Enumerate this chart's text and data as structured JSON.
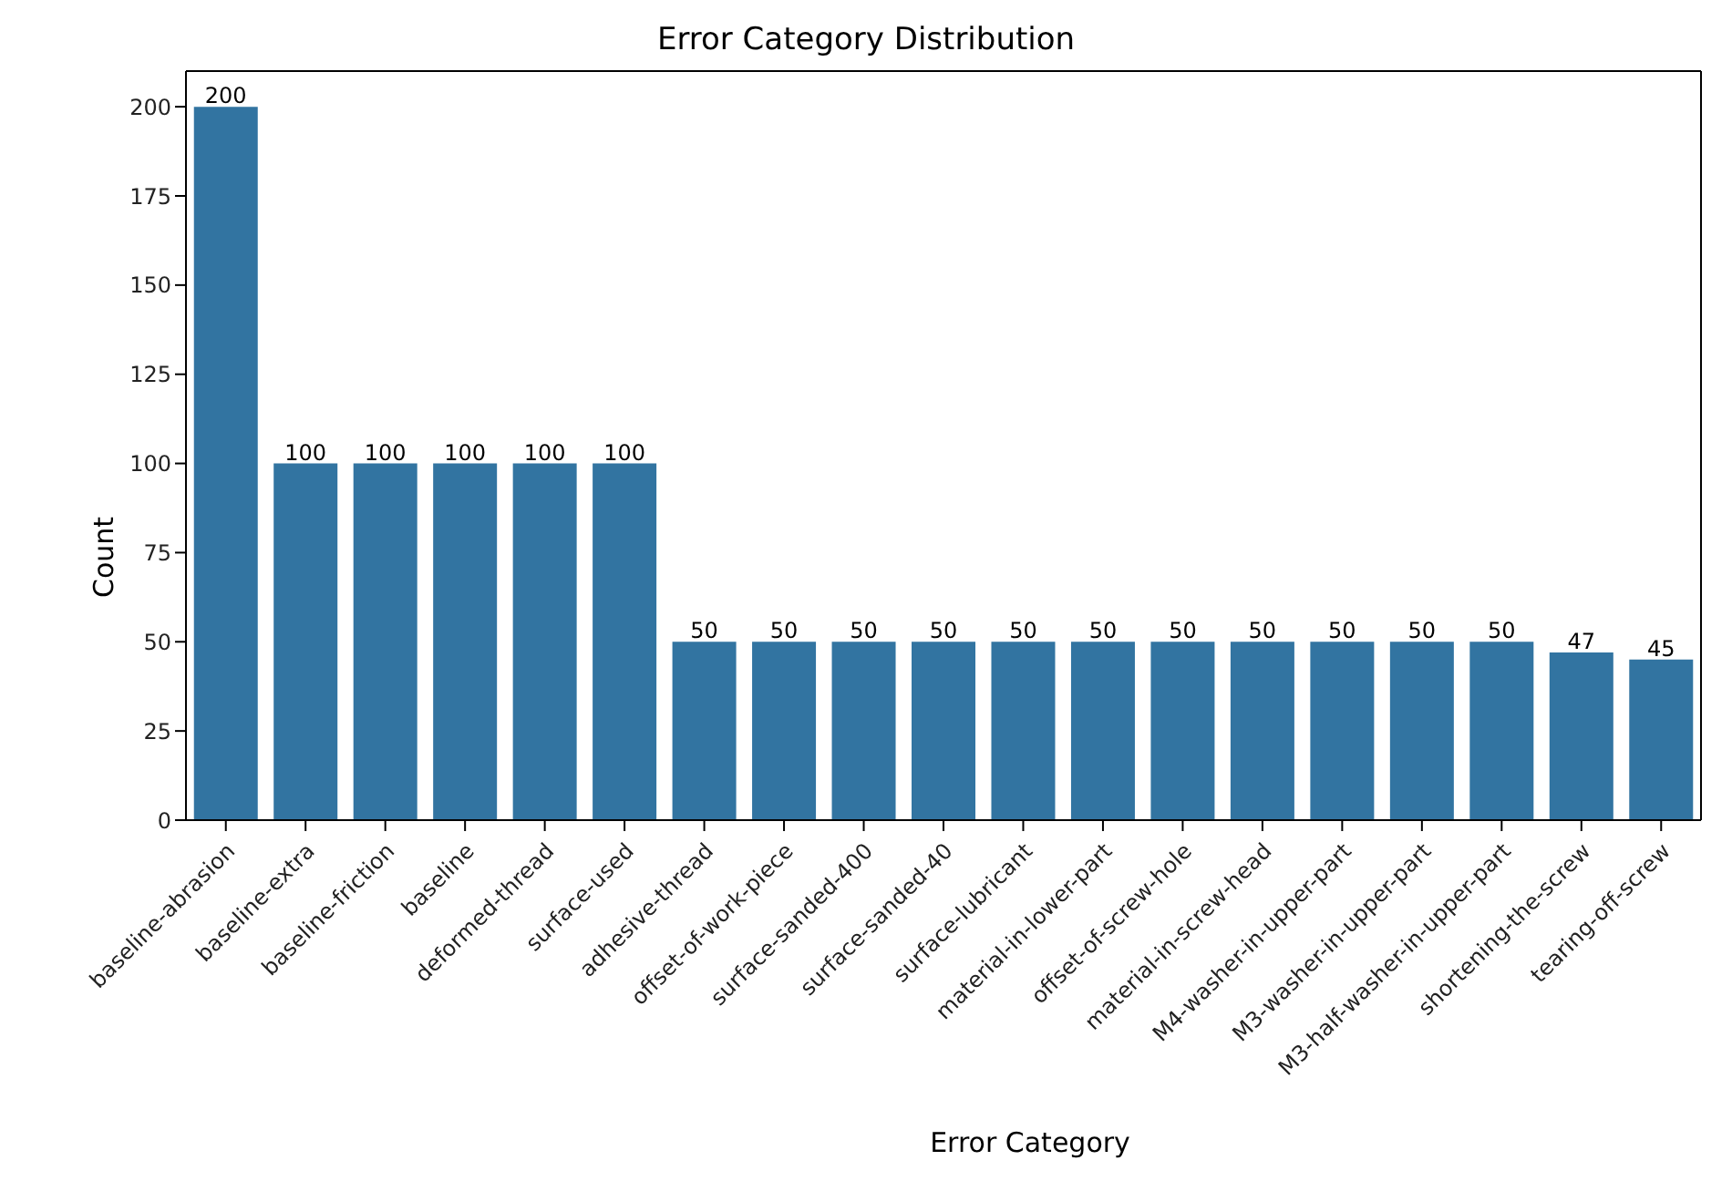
{
  "chart_data": {
    "type": "bar",
    "title": "Error Category Distribution",
    "xlabel": "Error Category",
    "ylabel": "Count",
    "categories": [
      "baseline-abrasion",
      "baseline-extra",
      "baseline-friction",
      "baseline",
      "deformed-thread",
      "surface-used",
      "adhesive-thread",
      "offset-of-work-piece",
      "surface-sanded-400",
      "surface-sanded-40",
      "surface-lubricant",
      "material-in-lower-part",
      "offset-of-screw-hole",
      "material-in-screw-head",
      "M4-washer-in-upper-part",
      "M3-washer-in-upper-part",
      "M3-half-washer-in-upper-part",
      "shortening-the-screw",
      "tearing-off-screw"
    ],
    "values": [
      200,
      100,
      100,
      100,
      100,
      100,
      50,
      50,
      50,
      50,
      50,
      50,
      50,
      50,
      50,
      50,
      50,
      47,
      45
    ],
    "color": "#3274a1",
    "ylim": [
      0,
      210
    ],
    "yticks": [
      0,
      25,
      50,
      75,
      100,
      125,
      150,
      175,
      200
    ],
    "grid": false,
    "legend": false,
    "data_labels": true
  }
}
